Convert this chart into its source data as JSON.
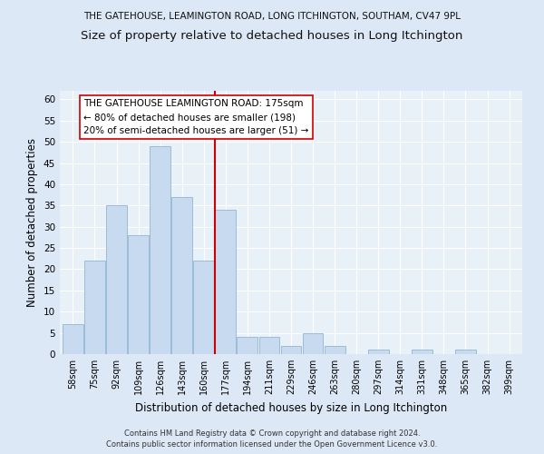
{
  "title": "THE GATEHOUSE, LEAMINGTON ROAD, LONG ITCHINGTON, SOUTHAM, CV47 9PL",
  "subtitle": "Size of property relative to detached houses in Long Itchington",
  "xlabel": "Distribution of detached houses by size in Long Itchington",
  "ylabel": "Number of detached properties",
  "bar_labels": [
    "58sqm",
    "75sqm",
    "92sqm",
    "109sqm",
    "126sqm",
    "143sqm",
    "160sqm",
    "177sqm",
    "194sqm",
    "211sqm",
    "229sqm",
    "246sqm",
    "263sqm",
    "280sqm",
    "297sqm",
    "314sqm",
    "331sqm",
    "348sqm",
    "365sqm",
    "382sqm",
    "399sqm"
  ],
  "bar_values": [
    7,
    22,
    35,
    28,
    49,
    37,
    22,
    34,
    4,
    4,
    2,
    5,
    2,
    0,
    1,
    0,
    1,
    0,
    1,
    0,
    0
  ],
  "bar_color": "#c8daf0",
  "bar_edge_color": "#9bbcd8",
  "vline_x": 6.5,
  "vline_label": "THE GATEHOUSE LEAMINGTON ROAD: 175sqm",
  "vline_note1": "← 80% of detached houses are smaller (198)",
  "vline_note2": "20% of semi-detached houses are larger (51) →",
  "vline_color": "#cc0000",
  "annotation_box_color": "#ffffff",
  "annotation_box_edge": "#cc0000",
  "ylim": [
    0,
    62
  ],
  "yticks": [
    0,
    5,
    10,
    15,
    20,
    25,
    30,
    35,
    40,
    45,
    50,
    55,
    60
  ],
  "bg_color": "#dce8f5",
  "plot_bg_color": "#e8f0f8",
  "footer1": "Contains HM Land Registry data © Crown copyright and database right 2024.",
  "footer2": "Contains public sector information licensed under the Open Government Licence v3.0.",
  "title_fontsize": 7.5,
  "subtitle_fontsize": 9.5,
  "xlabel_fontsize": 8.5,
  "ylabel_fontsize": 8.5,
  "annot_fontsize": 7.5,
  "footer_fontsize": 6.0
}
